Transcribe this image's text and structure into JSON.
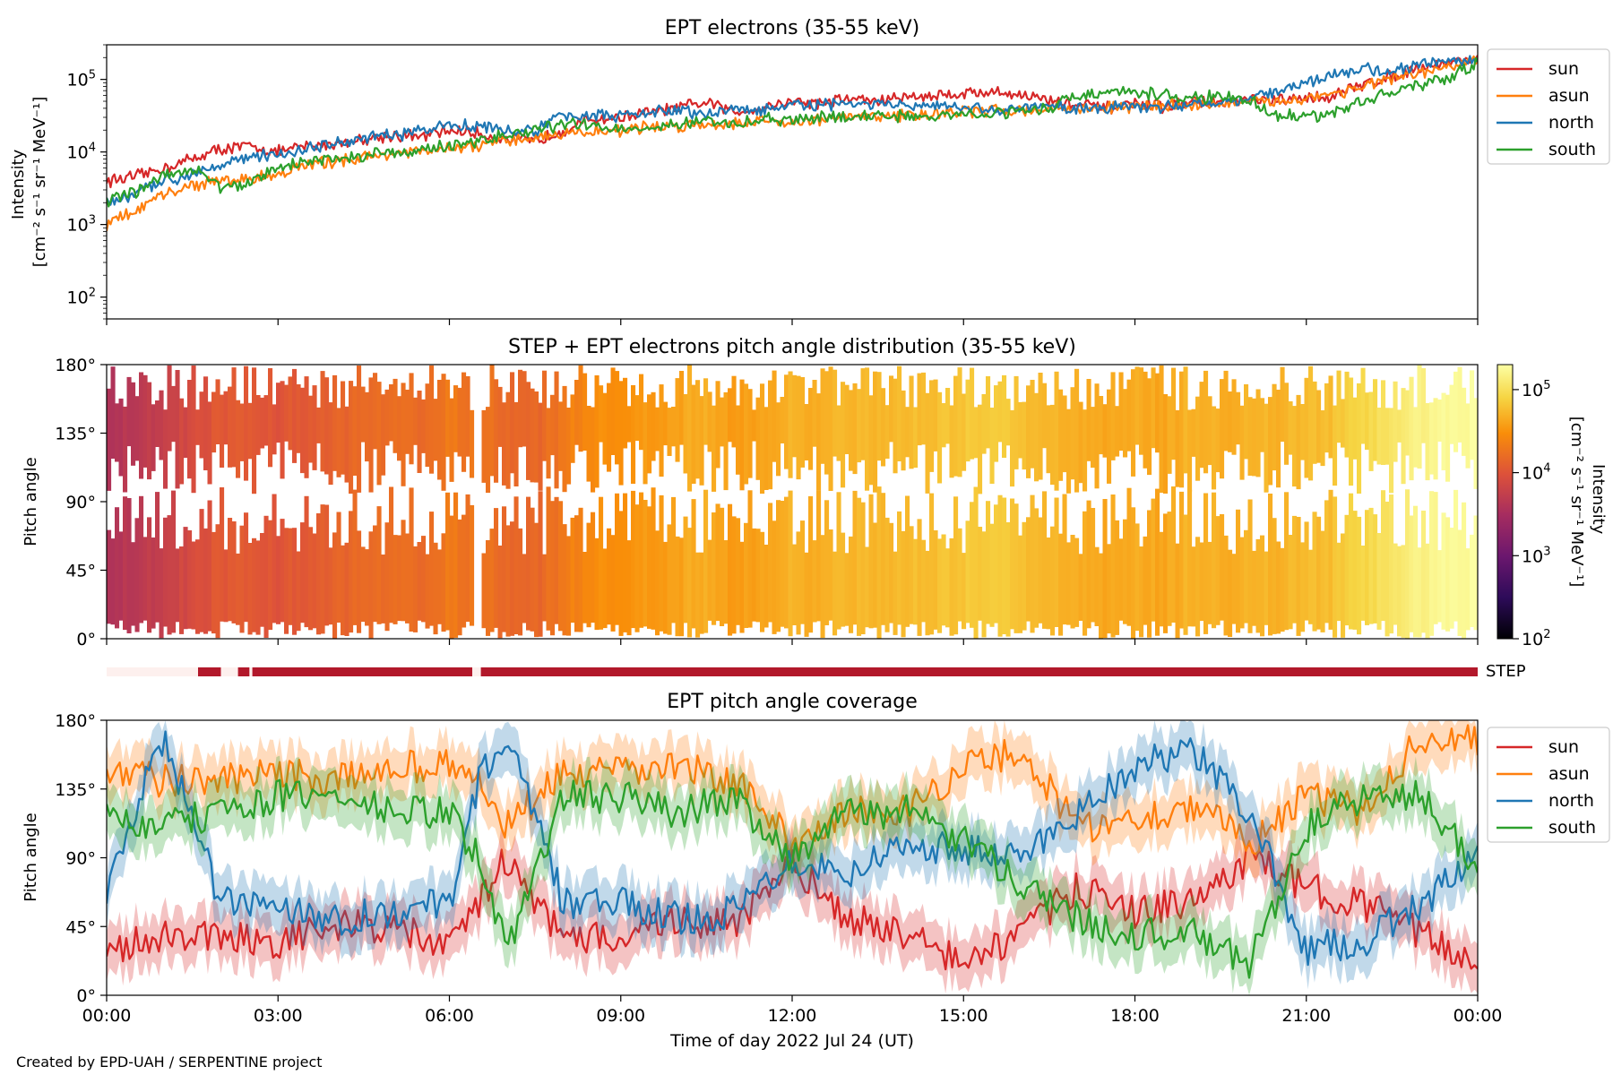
{
  "footer": {
    "credit": "Created by EPD-UAH / SERPENTINE project"
  },
  "colors": {
    "sun": "#d62728",
    "asun": "#ff7f0e",
    "north": "#1f77b4",
    "south": "#2ca02c",
    "step_bar": "#b2182b",
    "step_bar_missing": "#fdf0ee"
  },
  "chart_data": [
    {
      "type": "line",
      "title": "EPT electrons (35-55 keV)",
      "ylabel": "Intensity\n[cm⁻² s⁻¹ sr⁻¹ MeV⁻¹]",
      "yscale": "log",
      "ylim": [
        50,
        300000
      ],
      "xlim": [
        0,
        24
      ],
      "ytick_labels": [
        {
          "exp": "2",
          "value": 100
        },
        {
          "exp": "3",
          "value": 1000
        },
        {
          "exp": "4",
          "value": 10000
        },
        {
          "exp": "5",
          "value": 100000
        }
      ],
      "legend": "outside-right",
      "legend_entries": [
        "sun",
        "asun",
        "north",
        "south"
      ],
      "series": [
        {
          "name": "sun",
          "color": "#d62728",
          "x": [
            0,
            0.5,
            1,
            1.5,
            2,
            2.5,
            3,
            3.5,
            4,
            4.5,
            5,
            5.5,
            6,
            6.5,
            7,
            7.5,
            8,
            8.5,
            9,
            9.5,
            10,
            10.5,
            11,
            11.5,
            12,
            12.5,
            13,
            13.5,
            14,
            14.5,
            15,
            15.5,
            16,
            16.5,
            17,
            17.5,
            18,
            18.5,
            19,
            19.5,
            20,
            20.5,
            21,
            21.5,
            22,
            22.5,
            23,
            23.5,
            24
          ],
          "y": [
            4000,
            4500,
            6000,
            8000,
            11000,
            12000,
            10000,
            12000,
            13000,
            15000,
            17000,
            16000,
            20000,
            18000,
            15000,
            14000,
            20000,
            28000,
            30000,
            35000,
            40000,
            48000,
            35000,
            42000,
            50000,
            47000,
            55000,
            50000,
            58000,
            60000,
            65000,
            67000,
            62000,
            52000,
            45000,
            40000,
            45000,
            42000,
            50000,
            46000,
            52000,
            50000,
            55000,
            60000,
            85000,
            110000,
            150000,
            170000,
            200000
          ]
        },
        {
          "name": "asun",
          "color": "#ff7f0e",
          "x": [
            0,
            0.5,
            1,
            1.5,
            2,
            2.5,
            3,
            3.5,
            4,
            4.5,
            5,
            5.5,
            6,
            6.5,
            7,
            7.5,
            8,
            8.5,
            9,
            9.5,
            10,
            10.5,
            11,
            11.5,
            12,
            12.5,
            13,
            13.5,
            14,
            14.5,
            15,
            15.5,
            16,
            16.5,
            17,
            17.5,
            18,
            18.5,
            19,
            19.5,
            20,
            20.5,
            21,
            21.5,
            22,
            22.5,
            23,
            23.5,
            24
          ],
          "y": [
            1000,
            1500,
            2500,
            3500,
            4000,
            4200,
            5000,
            6500,
            7500,
            8500,
            9500,
            10000,
            11000,
            12000,
            14000,
            16000,
            18000,
            19000,
            20000,
            22000,
            23000,
            24000,
            25000,
            27000,
            26000,
            28000,
            30000,
            31000,
            32000,
            34000,
            36000,
            37000,
            38000,
            39000,
            40000,
            41000,
            42000,
            44000,
            45000,
            46000,
            48000,
            50000,
            55000,
            65000,
            80000,
            100000,
            120000,
            150000,
            180000
          ]
        },
        {
          "name": "north",
          "color": "#1f77b4",
          "x": [
            0,
            0.5,
            1,
            1.5,
            2,
            2.5,
            3,
            3.5,
            4,
            4.5,
            5,
            5.5,
            6,
            6.5,
            7,
            7.5,
            8,
            8.5,
            9,
            9.5,
            10,
            10.5,
            11,
            11.5,
            12,
            12.5,
            13,
            13.5,
            14,
            14.5,
            15,
            15.5,
            16,
            16.5,
            17,
            17.5,
            18,
            18.5,
            19,
            19.5,
            20,
            20.5,
            21,
            21.5,
            22,
            22.5,
            23,
            23.5,
            24
          ],
          "y": [
            2000,
            2500,
            4000,
            5000,
            7000,
            8500,
            9000,
            11000,
            13000,
            15000,
            17000,
            19000,
            24000,
            23000,
            20000,
            19000,
            32000,
            33000,
            30000,
            35000,
            38000,
            32000,
            40000,
            37000,
            45000,
            43000,
            47000,
            45000,
            43000,
            42000,
            40000,
            38000,
            40000,
            42000,
            40000,
            42000,
            44000,
            40000,
            46000,
            50000,
            56000,
            65000,
            90000,
            120000,
            140000,
            130000,
            160000,
            180000,
            200000
          ]
        },
        {
          "name": "south",
          "color": "#2ca02c",
          "x": [
            0,
            0.5,
            1,
            1.5,
            2,
            2.5,
            3,
            3.5,
            4,
            4.5,
            5,
            5.5,
            6,
            6.5,
            7,
            7.5,
            8,
            8.5,
            9,
            9.5,
            10,
            10.5,
            11,
            11.5,
            12,
            12.5,
            13,
            13.5,
            14,
            14.5,
            15,
            15.5,
            16,
            16.5,
            17,
            17.5,
            18,
            18.5,
            19,
            19.5,
            20,
            20.5,
            21,
            21.5,
            22,
            22.5,
            23,
            23.5,
            24
          ],
          "y": [
            2000,
            2800,
            4500,
            6000,
            3200,
            3600,
            6000,
            7500,
            8000,
            9000,
            10000,
            10500,
            12000,
            14000,
            17000,
            20000,
            24000,
            23000,
            21000,
            22000,
            24000,
            26000,
            24000,
            28000,
            27000,
            30000,
            30000,
            32000,
            31000,
            30000,
            33000,
            35000,
            37000,
            40000,
            60000,
            66000,
            65000,
            60000,
            55000,
            58000,
            50000,
            32000,
            30000,
            35000,
            50000,
            70000,
            80000,
            100000,
            170000
          ]
        }
      ]
    },
    {
      "type": "heatmap",
      "title": "STEP + EPT electrons pitch angle distribution (35-55 keV)",
      "ylabel": "Pitch angle",
      "ylim": [
        0,
        180
      ],
      "xlim": [
        0,
        24
      ],
      "ytick_labels": [
        "0°",
        "45°",
        "90°",
        "135°",
        "180°"
      ],
      "colormap": "inferno",
      "colorbar": {
        "label": "Intensity\n[cm⁻² s⁻¹ sr⁻¹ MeV⁻¹]",
        "scale": "log",
        "range": [
          100,
          200000
        ],
        "ticks": [
          {
            "exp": "2",
            "value": 100
          },
          {
            "exp": "3",
            "value": 1000
          },
          {
            "exp": "4",
            "value": 10000
          },
          {
            "exp": "5",
            "value": 100000
          }
        ]
      },
      "data_gaps_hours": [
        [
          6.4,
          6.55
        ]
      ]
    },
    {
      "type": "bar",
      "label": "STEP",
      "xlim": [
        0,
        24
      ],
      "segments": [
        {
          "start": 0,
          "end": 1.6,
          "state": "missing"
        },
        {
          "start": 1.6,
          "end": 2.0,
          "state": "present"
        },
        {
          "start": 2.0,
          "end": 2.3,
          "state": "missing"
        },
        {
          "start": 2.3,
          "end": 2.5,
          "state": "present"
        },
        {
          "start": 2.5,
          "end": 2.55,
          "state": "missing"
        },
        {
          "start": 2.55,
          "end": 6.4,
          "state": "present"
        },
        {
          "start": 6.4,
          "end": 6.55,
          "state": "missing"
        },
        {
          "start": 6.55,
          "end": 24,
          "state": "present"
        }
      ]
    },
    {
      "type": "line",
      "title": "EPT pitch angle coverage",
      "ylabel": "Pitch angle",
      "xlabel": "Time of day 2022 Jul 24 (UT)",
      "ylim": [
        0,
        180
      ],
      "xlim": [
        0,
        24
      ],
      "ytick_labels": [
        "0°",
        "45°",
        "90°",
        "135°",
        "180°"
      ],
      "xtick_labels": [
        "00:00",
        "03:00",
        "06:00",
        "09:00",
        "12:00",
        "15:00",
        "18:00",
        "21:00",
        "00:00"
      ],
      "legend": "outside-right",
      "legend_entries": [
        "sun",
        "asun",
        "north",
        "south"
      ],
      "series": [
        {
          "name": "sun",
          "color": "#d62728",
          "x": [
            0,
            1,
            2,
            3,
            4,
            5,
            6,
            6.5,
            7,
            8,
            9,
            10,
            11,
            12,
            13,
            14,
            15,
            16,
            17,
            18,
            19,
            20,
            21,
            22,
            23,
            24
          ],
          "y": [
            30,
            40,
            40,
            35,
            45,
            45,
            30,
            60,
            90,
            35,
            40,
            50,
            45,
            85,
            50,
            40,
            20,
            40,
            70,
            55,
            60,
            90,
            70,
            60,
            40,
            20
          ]
        },
        {
          "name": "asun",
          "color": "#ff7f0e",
          "x": [
            0,
            1,
            2,
            3,
            4,
            5,
            6,
            6.5,
            7,
            8,
            9,
            10,
            11,
            12,
            13,
            14,
            15,
            16,
            17,
            18,
            19,
            20,
            21,
            22,
            23,
            24
          ],
          "y": [
            150,
            140,
            140,
            145,
            140,
            150,
            150,
            140,
            110,
            145,
            145,
            150,
            140,
            100,
            120,
            120,
            150,
            160,
            110,
            115,
            125,
            100,
            130,
            120,
            170,
            165
          ]
        },
        {
          "name": "north",
          "color": "#1f77b4",
          "x": [
            0,
            1,
            2,
            3,
            4,
            5,
            6,
            6.5,
            7,
            8,
            9,
            10,
            11,
            12,
            13,
            14,
            15,
            16,
            17,
            18,
            19,
            20,
            21,
            22,
            23,
            24
          ],
          "y": [
            70,
            170,
            60,
            60,
            50,
            55,
            60,
            140,
            170,
            60,
            60,
            50,
            55,
            90,
            80,
            100,
            95,
            90,
            120,
            150,
            160,
            120,
            30,
            35,
            60,
            90
          ]
        },
        {
          "name": "south",
          "color": "#2ca02c",
          "x": [
            0,
            1,
            2,
            3,
            4,
            5,
            6,
            6.5,
            7,
            8,
            9,
            10,
            11,
            12,
            13,
            14,
            15,
            16,
            17,
            18,
            19,
            20,
            21,
            22,
            23,
            24
          ],
          "y": [
            115,
            110,
            120,
            130,
            130,
            120,
            120,
            90,
            30,
            130,
            130,
            120,
            130,
            90,
            120,
            120,
            100,
            75,
            50,
            40,
            40,
            20,
            110,
            130,
            130,
            85
          ]
        }
      ]
    }
  ]
}
